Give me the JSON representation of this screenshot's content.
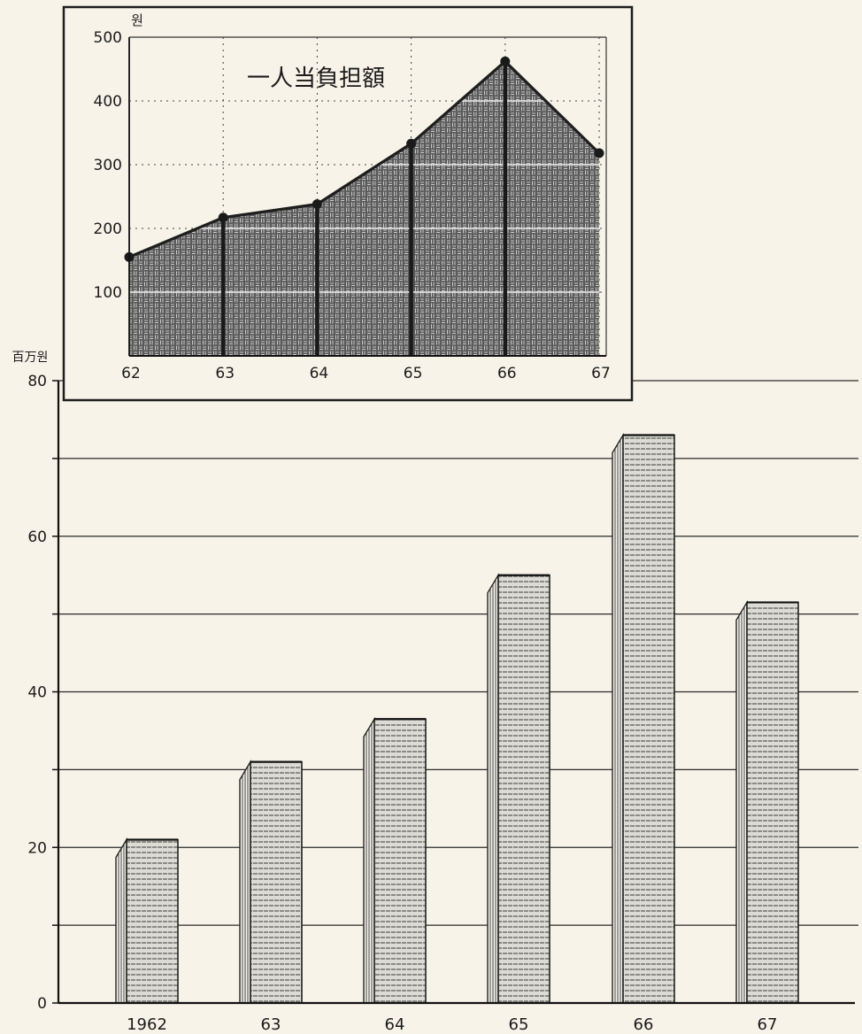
{
  "chart_data": [
    {
      "type": "bar",
      "ylabel": "百万원",
      "ylim": [
        0,
        80
      ],
      "yticks": [
        0,
        20,
        40,
        60,
        80
      ],
      "grid": true,
      "categories": [
        "1962",
        "63",
        "64",
        "65",
        "66",
        "67"
      ],
      "values": [
        21,
        31,
        36.5,
        55,
        73,
        51.5
      ],
      "style": {
        "bar_color": "#dcdcd4",
        "hatch_color": "#3a3a3a",
        "grid_color": "#2a2a2a"
      }
    },
    {
      "type": "area",
      "title": "一人当負担額",
      "ylabel": "원",
      "ylim": [
        0,
        500
      ],
      "yticks": [
        100,
        200,
        300,
        400,
        500
      ],
      "grid": true,
      "x": [
        "62",
        "63",
        "64",
        "65",
        "66",
        "67"
      ],
      "values": [
        155,
        217,
        238,
        333,
        462,
        318
      ],
      "style": {
        "fill_color": "#5a5a5a",
        "line_color": "#1e1e1e"
      }
    }
  ]
}
